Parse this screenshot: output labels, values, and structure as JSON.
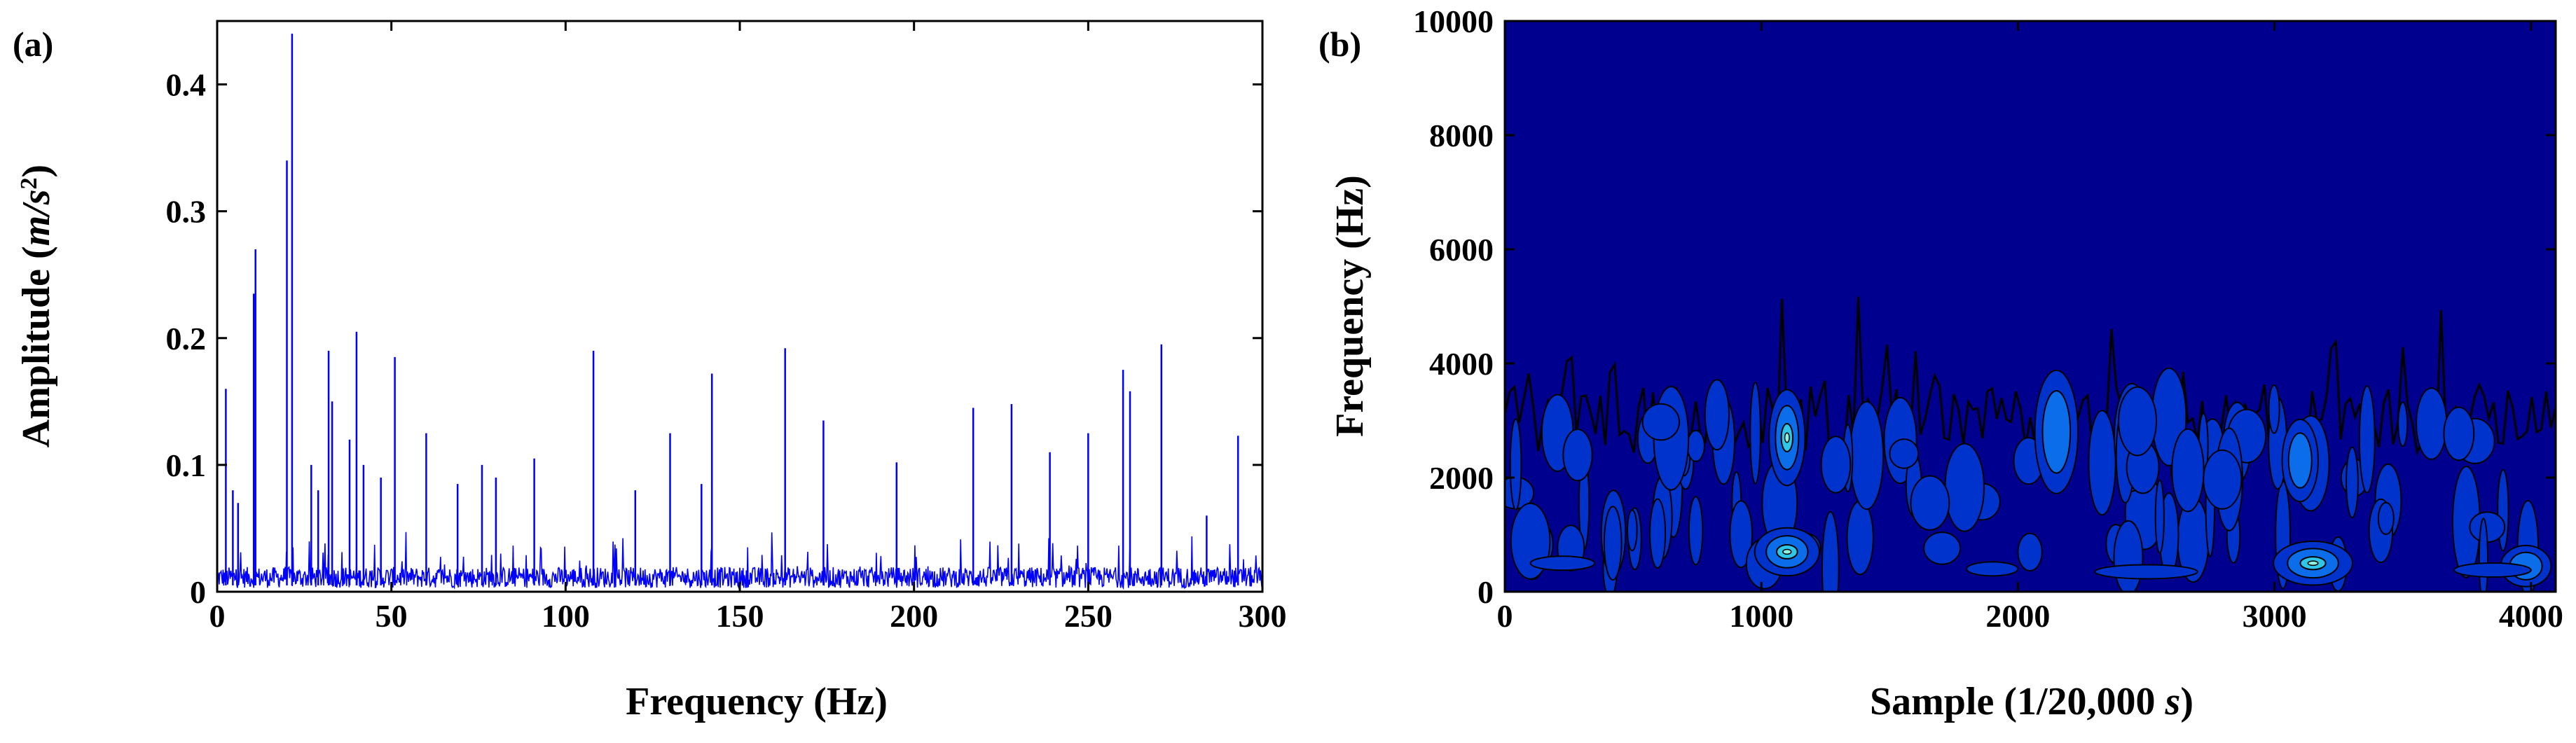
{
  "chart_data": [
    {
      "type": "line",
      "panel_label": "(a)",
      "xlabel": "Frequency (Hz)",
      "ylabel": "Amplitude (m/s²)",
      "ylabel_parts": {
        "base": "Amplitude (",
        "unit": "m/s",
        "sup": "2",
        "close": ")"
      },
      "xlim": [
        0,
        300
      ],
      "ylim": [
        0,
        0.45
      ],
      "xticks": [
        0,
        50,
        100,
        150,
        200,
        250,
        300
      ],
      "yticks": [
        0,
        0.1,
        0.2,
        0.3,
        0.4
      ],
      "xtick_labels": [
        "0",
        "50",
        "100",
        "150",
        "200",
        "250",
        "300"
      ],
      "ytick_labels": [
        "0",
        "0.1",
        "0.2",
        "0.3",
        "0.4"
      ],
      "grid": false,
      "color": "#0000ff",
      "noise_floor": 0.015,
      "peaks": [
        {
          "x": 2.5,
          "y": 0.16
        },
        {
          "x": 4.5,
          "y": 0.08
        },
        {
          "x": 6.0,
          "y": 0.07
        },
        {
          "x": 10.5,
          "y": 0.235
        },
        {
          "x": 11.0,
          "y": 0.27
        },
        {
          "x": 20.0,
          "y": 0.34
        },
        {
          "x": 21.5,
          "y": 0.44
        },
        {
          "x": 27.0,
          "y": 0.1
        },
        {
          "x": 29.0,
          "y": 0.08
        },
        {
          "x": 32.0,
          "y": 0.19
        },
        {
          "x": 33.0,
          "y": 0.15
        },
        {
          "x": 38.0,
          "y": 0.12
        },
        {
          "x": 40.0,
          "y": 0.205
        },
        {
          "x": 42.0,
          "y": 0.1
        },
        {
          "x": 47.0,
          "y": 0.09
        },
        {
          "x": 51.0,
          "y": 0.185
        },
        {
          "x": 60.0,
          "y": 0.125
        },
        {
          "x": 69.0,
          "y": 0.085
        },
        {
          "x": 76.0,
          "y": 0.1
        },
        {
          "x": 80.0,
          "y": 0.09
        },
        {
          "x": 91.0,
          "y": 0.105
        },
        {
          "x": 108.0,
          "y": 0.19
        },
        {
          "x": 120.0,
          "y": 0.08
        },
        {
          "x": 130.0,
          "y": 0.125
        },
        {
          "x": 139.0,
          "y": 0.085
        },
        {
          "x": 142.0,
          "y": 0.172
        },
        {
          "x": 163.0,
          "y": 0.192
        },
        {
          "x": 174.0,
          "y": 0.135
        },
        {
          "x": 195.0,
          "y": 0.102
        },
        {
          "x": 217.0,
          "y": 0.145
        },
        {
          "x": 228.0,
          "y": 0.148
        },
        {
          "x": 239.0,
          "y": 0.11
        },
        {
          "x": 250.0,
          "y": 0.125
        },
        {
          "x": 260.0,
          "y": 0.175
        },
        {
          "x": 262.0,
          "y": 0.158
        },
        {
          "x": 271.0,
          "y": 0.195
        },
        {
          "x": 284.0,
          "y": 0.06
        },
        {
          "x": 293.0,
          "y": 0.123
        }
      ]
    },
    {
      "type": "heatmap",
      "subtype": "contour-scalogram",
      "panel_label": "(b)",
      "xlabel": "Sample (1/20,000 s)",
      "xlabel_parts": {
        "base": "Sample (1/20,000 ",
        "unit": "s",
        "close": ")"
      },
      "ylabel": "Frequency (Hz)",
      "xlim": [
        0,
        4096
      ],
      "ylim": [
        0,
        10000
      ],
      "xticks": [
        0,
        1000,
        2000,
        3000,
        4000
      ],
      "yticks": [
        0,
        2000,
        4000,
        6000,
        8000,
        10000
      ],
      "xtick_labels": [
        "0",
        "1000",
        "2000",
        "3000",
        "4000"
      ],
      "ytick_labels": [
        "0",
        "2000",
        "4000",
        "6000",
        "8000",
        "10000"
      ],
      "grid": false,
      "colors": {
        "background": "#00008f",
        "level1": "#0033cc",
        "level2": "#0b6dea",
        "level3": "#30c6e8",
        "level4": "#8ff0df",
        "contour_line": "#000000"
      },
      "energy_bands": [
        {
          "x": 1100,
          "y": 700,
          "rx": 90,
          "ry": 350,
          "level": 3
        },
        {
          "x": 3150,
          "y": 500,
          "rx": 110,
          "ry": 320,
          "level": 3
        },
        {
          "x": 3980,
          "y": 450,
          "rx": 70,
          "ry": 300,
          "level": 2
        },
        {
          "x": 2150,
          "y": 2800,
          "rx": 60,
          "ry": 900,
          "level": 2
        },
        {
          "x": 1100,
          "y": 2700,
          "rx": 50,
          "ry": 700,
          "level": 3
        },
        {
          "x": 3100,
          "y": 2300,
          "rx": 50,
          "ry": 600,
          "level": 2
        }
      ]
    }
  ]
}
